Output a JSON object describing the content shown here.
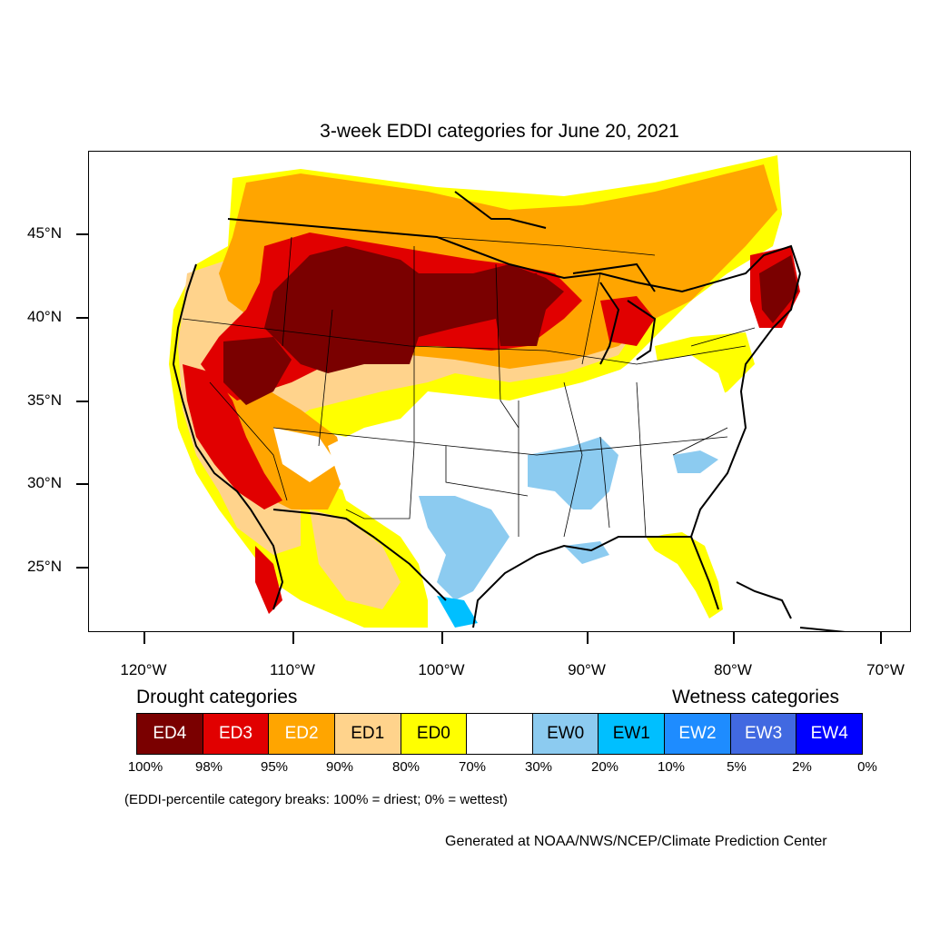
{
  "title": "3-week EDDI categories for June 20, 2021",
  "latitude_labels": [
    "45°N",
    "40°N",
    "35°N",
    "30°N",
    "25°N"
  ],
  "longitude_labels": [
    "120°W",
    "110°W",
    "100°W",
    "90°W",
    "80°W",
    "70°W"
  ],
  "legend": {
    "drought_heading": "Drought categories",
    "wetness_heading": "Wetness categories",
    "categories": [
      {
        "label": "ED4",
        "color": "#7a0000",
        "text_color": "#ffffff"
      },
      {
        "label": "ED3",
        "color": "#e10000",
        "text_color": "#ffffff"
      },
      {
        "label": "ED2",
        "color": "#ffa500",
        "text_color": "#ffffff"
      },
      {
        "label": "ED1",
        "color": "#ffd38c",
        "text_color": "#000000"
      },
      {
        "label": "ED0",
        "color": "#ffff00",
        "text_color": "#000000"
      },
      {
        "label": "",
        "color": "#ffffff",
        "text_color": "#000000"
      },
      {
        "label": "EW0",
        "color": "#8ccbf0",
        "text_color": "#000000"
      },
      {
        "label": "EW1",
        "color": "#00bfff",
        "text_color": "#000000"
      },
      {
        "label": "EW2",
        "color": "#1e8cff",
        "text_color": "#ffffff"
      },
      {
        "label": "EW3",
        "color": "#4169e1",
        "text_color": "#ffffff"
      },
      {
        "label": "EW4",
        "color": "#0000ff",
        "text_color": "#ffffff"
      }
    ],
    "breaks": [
      "100%",
      "98%",
      "95%",
      "90%",
      "80%",
      "70%",
      "30%",
      "20%",
      "10%",
      "5%",
      "2%",
      "0%"
    ]
  },
  "breaks_note": "(EDDI-percentile category breaks: 100% = driest; 0% = wettest)",
  "credit": "Generated at NOAA/NWS/NCEP/Climate Prediction Center"
}
